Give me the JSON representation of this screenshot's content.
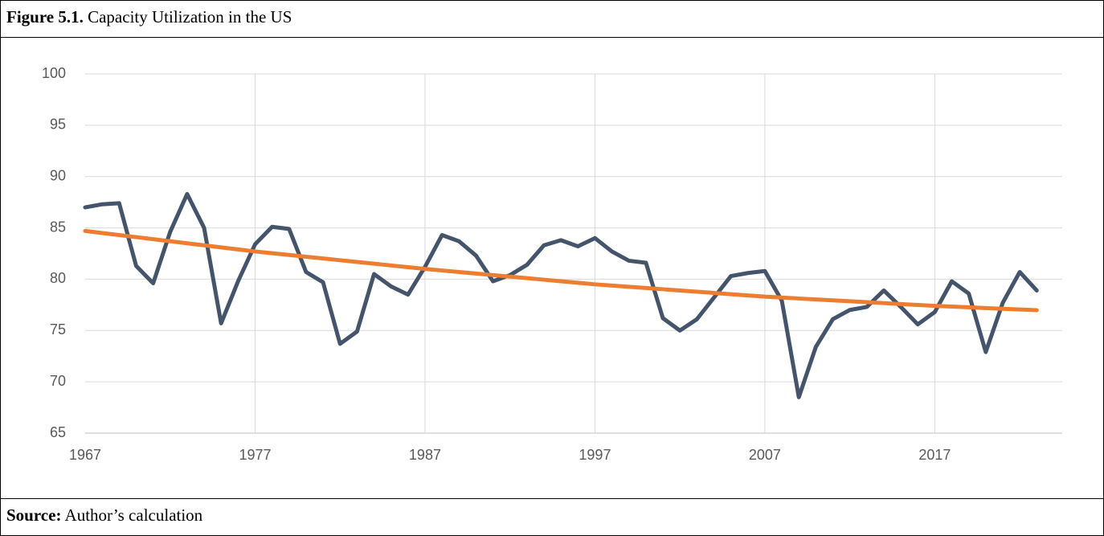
{
  "figure_label": "Figure 5.1.",
  "source_label": "Source:",
  "source": "Author’s calculation",
  "chart_data": {
    "type": "line",
    "title": "Capacity Utilization in the US",
    "x": [
      1967,
      1968,
      1969,
      1970,
      1971,
      1972,
      1973,
      1974,
      1975,
      1976,
      1977,
      1978,
      1979,
      1980,
      1981,
      1982,
      1983,
      1984,
      1985,
      1986,
      1987,
      1988,
      1989,
      1990,
      1991,
      1992,
      1993,
      1994,
      1995,
      1996,
      1997,
      1998,
      1999,
      2000,
      2001,
      2002,
      2003,
      2004,
      2005,
      2006,
      2007,
      2008,
      2009,
      2010,
      2011,
      2012,
      2013,
      2014,
      2015,
      2016,
      2017,
      2018,
      2019,
      2020,
      2021,
      2022,
      2023
    ],
    "series": [
      {
        "color": "#44546a",
        "values": [
          87.0,
          87.3,
          87.4,
          81.3,
          79.6,
          84.6,
          88.3,
          85.0,
          75.7,
          79.8,
          83.4,
          85.1,
          84.9,
          80.7,
          79.7,
          73.7,
          74.9,
          80.5,
          79.3,
          78.5,
          81.2,
          84.3,
          83.7,
          82.3,
          79.8,
          80.4,
          81.4,
          83.3,
          83.8,
          83.2,
          84.0,
          82.7,
          81.8,
          81.6,
          76.2,
          75.0,
          76.1,
          78.2,
          80.3,
          80.6,
          80.8,
          77.9,
          68.5,
          73.4,
          76.1,
          77.0,
          77.3,
          78.9,
          77.3,
          75.6,
          76.8,
          79.8,
          78.6,
          72.9,
          77.7,
          80.7,
          78.9
        ]
      },
      {
        "color": "#ed7d31",
        "values": [
          84.7,
          84.5,
          84.3,
          84.1,
          83.9,
          83.7,
          83.5,
          83.3,
          83.1,
          82.9,
          82.7,
          82.53,
          82.36,
          82.19,
          82.02,
          81.85,
          81.68,
          81.51,
          81.34,
          81.17,
          81.0,
          80.85,
          80.7,
          80.55,
          80.4,
          80.25,
          80.1,
          79.95,
          79.8,
          79.65,
          79.5,
          79.38,
          79.26,
          79.14,
          79.02,
          78.9,
          78.78,
          78.66,
          78.54,
          78.42,
          78.3,
          78.21,
          78.12,
          78.03,
          77.94,
          77.85,
          77.76,
          77.67,
          77.58,
          77.49,
          77.4,
          77.33,
          77.26,
          77.19,
          77.12,
          77.05,
          76.98
        ]
      }
    ],
    "xlim": [
      1967,
      2024.5
    ],
    "xticks": [
      1967,
      1977,
      1987,
      1997,
      2007,
      2017
    ],
    "ylim": [
      65,
      100
    ],
    "yticks": [
      65,
      70,
      75,
      80,
      85,
      90,
      95,
      100
    ],
    "grid": true
  }
}
